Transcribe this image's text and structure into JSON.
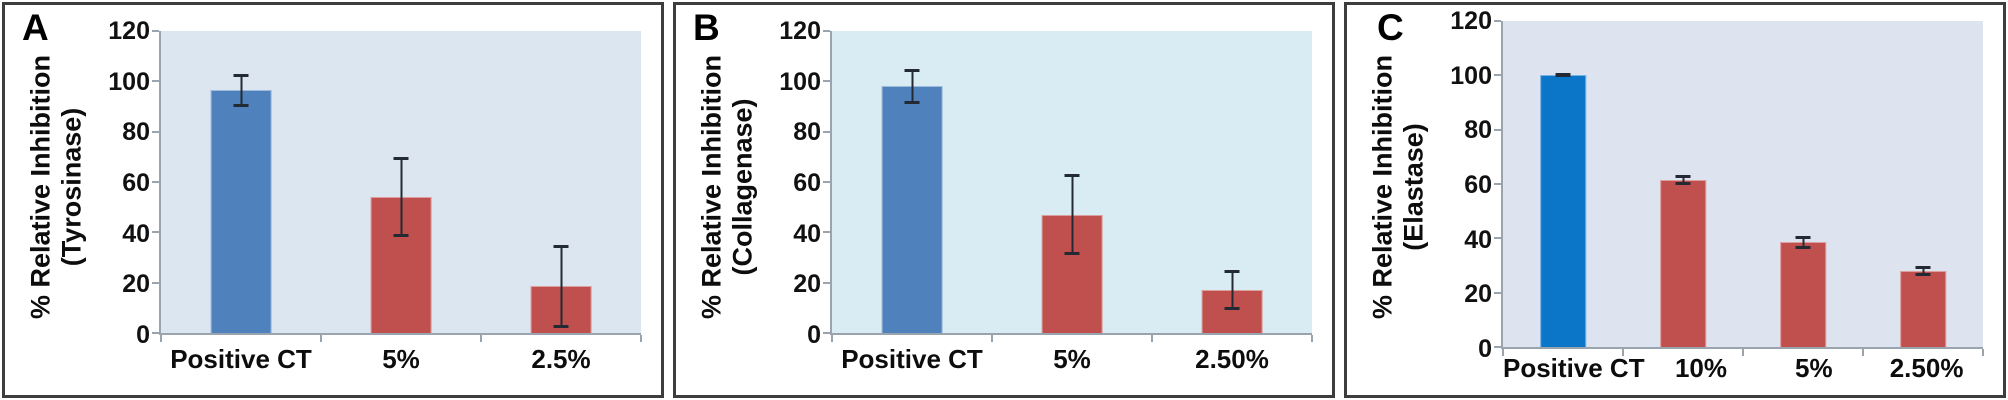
{
  "colors": {
    "steel_blue": "#4f81bd",
    "bright_blue": "#0b76c8",
    "brick_red": "#c0504d",
    "axis_line": "#9aa4ae",
    "error_bar": "#232a33",
    "panel_border": "#3d3d3d",
    "panel_bg_a": "#dce6f1",
    "panel_bg_b": "#daecf3",
    "panel_bg_c": "#dde4f0"
  },
  "chart_data": [
    {
      "type": "bar",
      "panel_label": "A",
      "ylabel_lines": [
        "% Relative Inhibition",
        "(Tyrosinase)"
      ],
      "categories": [
        "Positive CT",
        "5%",
        "2.5%"
      ],
      "values": [
        96.5,
        54,
        18.5
      ],
      "errors": [
        6.5,
        16,
        16.5
      ],
      "bar_colors": [
        "#4f81bd",
        "#c0504d",
        "#c0504d"
      ],
      "plot_bg": "#dce6f1",
      "ylim": [
        0,
        120
      ],
      "ytick_labels": [
        "120",
        "100",
        "80",
        "60",
        "40",
        "20",
        "0"
      ],
      "grid": false,
      "legend": null
    },
    {
      "type": "bar",
      "panel_label": "B",
      "ylabel_lines": [
        "% Relative Inhibition",
        "(Collagenase)"
      ],
      "categories": [
        "Positive CT",
        "5%",
        "2.50%"
      ],
      "values": [
        98,
        47,
        17
      ],
      "errors": [
        7,
        16,
        8
      ],
      "bar_colors": [
        "#4f81bd",
        "#c0504d",
        "#c0504d"
      ],
      "plot_bg": "#daecf3",
      "ylim": [
        0,
        120
      ],
      "ytick_labels": [
        "120",
        "100",
        "80",
        "60",
        "40",
        "20",
        "0"
      ],
      "grid": false,
      "legend": null
    },
    {
      "type": "bar",
      "panel_label": "C",
      "ylabel_lines": [
        "% Relative Inhibition",
        "(Elastase)"
      ],
      "categories": [
        "Positive CT",
        "10%",
        "5%",
        "2.50%"
      ],
      "values": [
        100,
        61.5,
        38.5,
        28
      ],
      "errors": [
        0.7,
        2,
        2.5,
        2
      ],
      "bar_colors": [
        "#0b76c8",
        "#c0504d",
        "#c0504d",
        "#c0504d"
      ],
      "plot_bg": "#dde4f0",
      "ylim": [
        0,
        120
      ],
      "ytick_labels": [
        "120",
        "100",
        "80",
        "60",
        "40",
        "20",
        "0"
      ],
      "grid": false,
      "legend": null
    }
  ]
}
